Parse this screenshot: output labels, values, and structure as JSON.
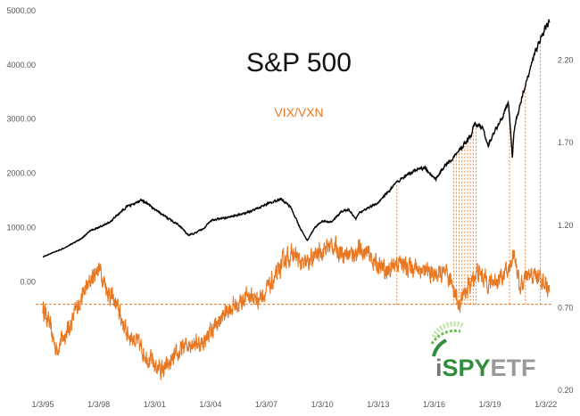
{
  "chart_data": {
    "type": "line",
    "title": "S&P 500",
    "subtitle": "VIX/VXN",
    "x_tick_labels": [
      "1/3/95",
      "1/3/98",
      "1/3/01",
      "1/3/04",
      "1/3/07",
      "1/3/10",
      "1/3/13",
      "1/3/16",
      "1/3/19",
      "1/3/22"
    ],
    "x_range": [
      1995.0,
      2022.3
    ],
    "y_left": {
      "ticks": [
        0,
        1000,
        2000,
        3000,
        4000,
        5000
      ],
      "tick_labels": [
        "0.00",
        "1000.00",
        "2000.00",
        "3000.00",
        "4000.00",
        "5000.00"
      ],
      "range": [
        -2000,
        5000
      ]
    },
    "y_right": {
      "ticks": [
        0.2,
        0.7,
        1.2,
        1.7,
        2.2
      ],
      "tick_labels": [
        "0.20",
        "0.70",
        "1.20",
        "1.70",
        "2.20"
      ],
      "range": [
        0.2,
        2.5
      ]
    },
    "threshold": {
      "axis": "right",
      "value": 0.72,
      "style": "dashed"
    },
    "signal_dates": [
      2014.0,
      2017.05,
      2017.2,
      2017.35,
      2017.5,
      2017.65,
      2017.8,
      2017.95,
      2018.1,
      2018.25,
      2020.05,
      2020.9,
      2021.7
    ],
    "series": [
      {
        "name": "S&P 500",
        "axis": "left",
        "color": "#000000",
        "x": [
          1995.0,
          1996.0,
          1997.0,
          1997.6,
          1998.0,
          1998.6,
          1999.0,
          1999.5,
          2000.0,
          2000.3,
          2000.7,
          2001.0,
          2001.5,
          2001.8,
          2002.3,
          2002.8,
          2003.2,
          2003.7,
          2004.0,
          2005.0,
          2006.0,
          2007.0,
          2007.8,
          2008.3,
          2008.8,
          2009.2,
          2009.6,
          2010.0,
          2010.5,
          2011.0,
          2011.4,
          2011.8,
          2012.0,
          2013.0,
          2014.0,
          2015.0,
          2015.5,
          2016.1,
          2016.6,
          2017.0,
          2018.0,
          2018.1,
          2018.6,
          2018.9,
          2019.0,
          2019.6,
          2020.0,
          2020.2,
          2020.3,
          2020.6,
          2021.0,
          2021.5,
          2022.0,
          2022.2
        ],
        "values": [
          460,
          600,
          780,
          950,
          1000,
          1100,
          1230,
          1380,
          1450,
          1500,
          1430,
          1330,
          1220,
          1150,
          1050,
          860,
          900,
          1000,
          1130,
          1190,
          1280,
          1430,
          1530,
          1380,
          1000,
          760,
          1000,
          1120,
          1100,
          1280,
          1340,
          1160,
          1280,
          1460,
          1830,
          2060,
          2100,
          1900,
          2150,
          2280,
          2700,
          2900,
          2850,
          2500,
          2600,
          3000,
          3300,
          2300,
          2800,
          3250,
          3750,
          4300,
          4700,
          4800
        ]
      },
      {
        "name": "VIX/VXN",
        "axis": "right",
        "color": "#e87722",
        "x": [
          1995.0,
          1995.3,
          1995.7,
          1996.0,
          1996.5,
          1997.0,
          1997.5,
          1998.0,
          1998.5,
          1999.0,
          1999.5,
          2000.0,
          2000.5,
          2001.0,
          2001.5,
          2002.0,
          2002.5,
          2003.0,
          2003.5,
          2004.0,
          2004.5,
          2005.0,
          2005.5,
          2006.0,
          2006.5,
          2007.0,
          2007.5,
          2008.0,
          2008.5,
          2009.0,
          2009.5,
          2010.0,
          2010.5,
          2011.0,
          2011.5,
          2012.0,
          2012.5,
          2013.0,
          2013.5,
          2014.0,
          2014.5,
          2015.0,
          2015.5,
          2016.0,
          2016.5,
          2017.0,
          2017.3,
          2017.6,
          2018.0,
          2018.3,
          2018.7,
          2019.0,
          2019.5,
          2020.0,
          2020.3,
          2020.6,
          2021.0,
          2021.5,
          2022.0,
          2022.2
        ],
        "values": [
          0.7,
          0.62,
          0.45,
          0.5,
          0.6,
          0.75,
          0.85,
          0.95,
          0.8,
          0.7,
          0.55,
          0.5,
          0.42,
          0.35,
          0.32,
          0.38,
          0.45,
          0.5,
          0.48,
          0.55,
          0.62,
          0.7,
          0.72,
          0.78,
          0.75,
          0.8,
          0.88,
          1.0,
          1.02,
          0.95,
          1.0,
          1.05,
          1.08,
          1.04,
          1.02,
          1.05,
          1.02,
          0.95,
          0.92,
          0.98,
          0.95,
          0.95,
          0.92,
          0.9,
          0.9,
          0.85,
          0.72,
          0.78,
          0.85,
          0.92,
          0.88,
          0.85,
          0.88,
          0.92,
          1.05,
          0.82,
          0.88,
          0.9,
          0.85,
          0.78
        ]
      }
    ],
    "grid": false,
    "legend": "none"
  },
  "logo": {
    "text_i": "i",
    "text_spy": "SPY",
    "text_etf": "ETF",
    "colors": {
      "i": "#777777",
      "spy": "#2f8d3c",
      "etf": "#9a9a9a"
    }
  }
}
